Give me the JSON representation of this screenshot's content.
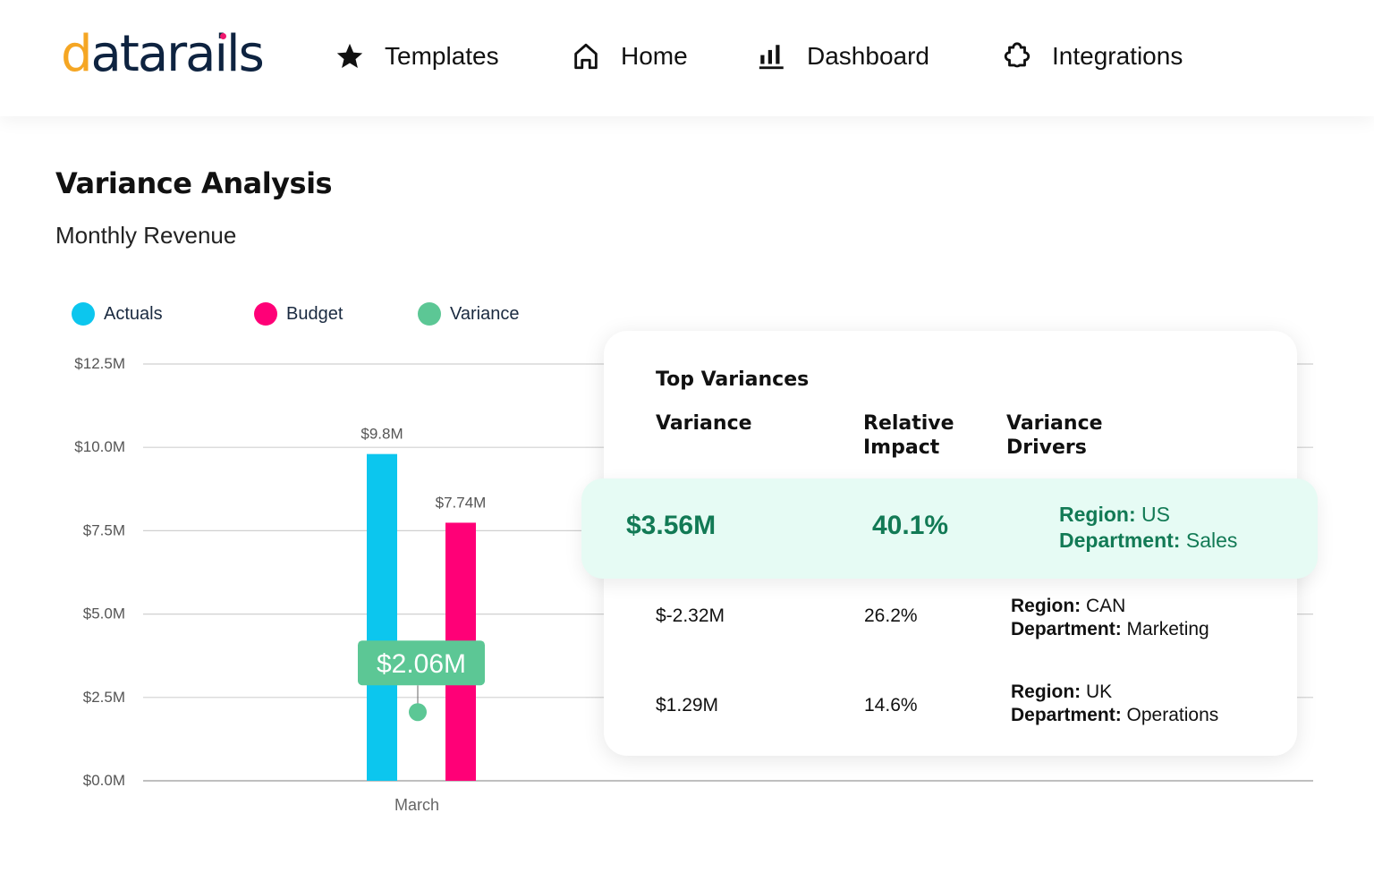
{
  "brand": {
    "logo_text": "datarails"
  },
  "nav": [
    {
      "label": "Templates",
      "icon": "star-icon"
    },
    {
      "label": "Home",
      "icon": "home-icon"
    },
    {
      "label": "Dashboard",
      "icon": "bar-chart-icon"
    },
    {
      "label": "Integrations",
      "icon": "puzzle-icon"
    }
  ],
  "page": {
    "title": "Variance Analysis",
    "subtitle": "Monthly Revenue"
  },
  "colors": {
    "actuals": "#0cc6ee",
    "budget": "#ff0077",
    "variance": "#5cc795",
    "highlight_bg": "#e6fbf4",
    "highlight_text": "#127a55"
  },
  "chart_data": {
    "type": "bar",
    "categories": [
      "March"
    ],
    "series": [
      {
        "name": "Actuals",
        "values": [
          9.8
        ],
        "labels": [
          "$9.8M"
        ]
      },
      {
        "name": "Budget",
        "values": [
          7.74
        ],
        "labels": [
          "$7.74M"
        ]
      },
      {
        "name": "Variance",
        "values": [
          2.06
        ],
        "labels": [
          "$2.06M"
        ]
      }
    ],
    "yticks": [
      "$0.0M",
      "$2.5M",
      "$5.0M",
      "$7.5M",
      "$10.0M",
      "$12.5M"
    ],
    "ylim": [
      0,
      12.5
    ],
    "grid": true,
    "legend": "top-left"
  },
  "top_variances": {
    "title": "Top Variances",
    "headers": [
      "Variance",
      "Relative Impact",
      "Variance Drivers"
    ],
    "rows": [
      {
        "variance": "$3.56M",
        "impact": "40.1%",
        "region_label": "Region:",
        "region": "US",
        "dept_label": "Department:",
        "dept": "Sales",
        "highlighted": true
      },
      {
        "variance": "$-2.32M",
        "impact": "26.2%",
        "region_label": "Region:",
        "region": "CAN",
        "dept_label": "Department:",
        "dept": "Marketing"
      },
      {
        "variance": "$1.29M",
        "impact": "14.6%",
        "region_label": "Region:",
        "region": "UK",
        "dept_label": "Department:",
        "dept": "Operations"
      }
    ]
  }
}
